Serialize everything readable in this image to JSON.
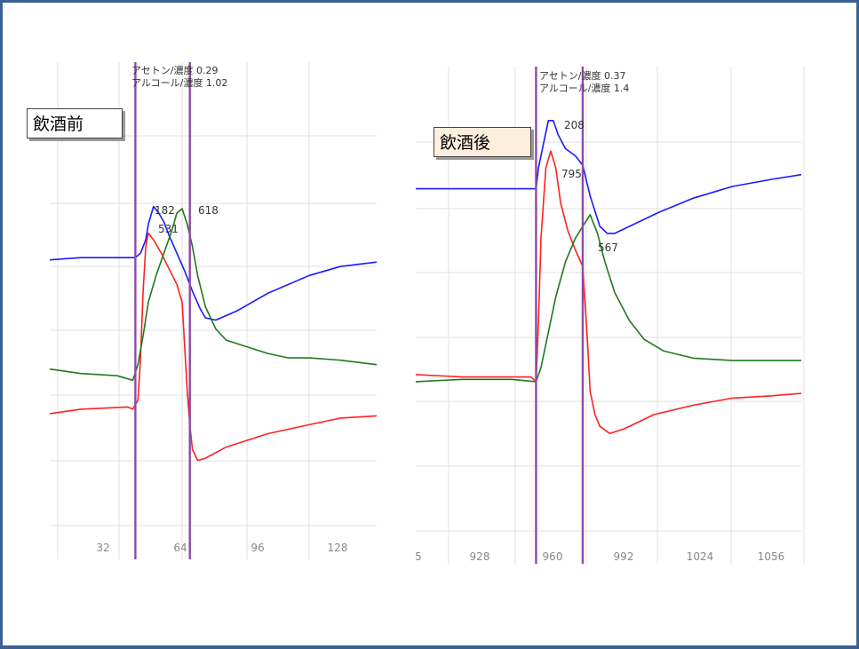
{
  "chart_data": [
    {
      "type": "line",
      "label": "飲酒前",
      "x_ticks": [
        "32",
        "64",
        "96",
        "128"
      ],
      "cursor_text": [
        "アセトン/濃度 0.29",
        "アルコール/濃度 1.02"
      ],
      "peaks": [
        "182",
        "531",
        "618"
      ],
      "series_colors": {
        "blue": "#1a1aff",
        "red": "#ff2020",
        "green": "#1e7a1e"
      },
      "x_range": [
        12,
        138
      ],
      "cursor_x": [
        45,
        66
      ],
      "series": [
        {
          "color": "blue",
          "points": [
            [
              12,
              0.79
            ],
            [
              24,
              0.8
            ],
            [
              45,
              0.8
            ],
            [
              47,
              0.82
            ],
            [
              49,
              0.88
            ],
            [
              50,
              0.95
            ],
            [
              52,
              1.03
            ],
            [
              54,
              1.0
            ],
            [
              56,
              0.96
            ],
            [
              58,
              0.9
            ],
            [
              61,
              0.82
            ],
            [
              64,
              0.74
            ],
            [
              67,
              0.65
            ],
            [
              70,
              0.57
            ],
            [
              72,
              0.53
            ],
            [
              76,
              0.52
            ],
            [
              84,
              0.56
            ],
            [
              96,
              0.64
            ],
            [
              112,
              0.72
            ],
            [
              124,
              0.76
            ],
            [
              138,
              0.78
            ]
          ]
        },
        {
          "color": "red",
          "points": [
            [
              12,
              0.1
            ],
            [
              24,
              0.12
            ],
            [
              42,
              0.13
            ],
            [
              44,
              0.12
            ],
            [
              46,
              0.16
            ],
            [
              47,
              0.35
            ],
            [
              48,
              0.65
            ],
            [
              49,
              0.85
            ],
            [
              50,
              0.91
            ],
            [
              52,
              0.88
            ],
            [
              55,
              0.82
            ],
            [
              58,
              0.75
            ],
            [
              61,
              0.68
            ],
            [
              63,
              0.6
            ],
            [
              64,
              0.4
            ],
            [
              65,
              0.2
            ],
            [
              66,
              0.05
            ],
            [
              67,
              -0.06
            ],
            [
              69,
              -0.11
            ],
            [
              72,
              -0.1
            ],
            [
              80,
              -0.05
            ],
            [
              96,
              0.01
            ],
            [
              112,
              0.05
            ],
            [
              124,
              0.08
            ],
            [
              138,
              0.09
            ]
          ]
        },
        {
          "color": "green",
          "points": [
            [
              12,
              0.3
            ],
            [
              24,
              0.28
            ],
            [
              38,
              0.27
            ],
            [
              44,
              0.25
            ],
            [
              46,
              0.32
            ],
            [
              48,
              0.45
            ],
            [
              50,
              0.6
            ],
            [
              53,
              0.72
            ],
            [
              56,
              0.82
            ],
            [
              59,
              0.92
            ],
            [
              61,
              1.0
            ],
            [
              63,
              1.02
            ],
            [
              65,
              0.95
            ],
            [
              67,
              0.85
            ],
            [
              69,
              0.72
            ],
            [
              72,
              0.58
            ],
            [
              76,
              0.48
            ],
            [
              80,
              0.43
            ],
            [
              88,
              0.4
            ],
            [
              96,
              0.37
            ],
            [
              104,
              0.35
            ],
            [
              112,
              0.35
            ],
            [
              124,
              0.34
            ],
            [
              138,
              0.32
            ]
          ]
        }
      ]
    },
    {
      "type": "line",
      "label": "飲酒後",
      "x_ticks": [
        "5",
        "928",
        "960",
        "992",
        "1024",
        "1056"
      ],
      "cursor_text": [
        "アセトン/濃度 0.37",
        "アルコール/濃度 1.4"
      ],
      "peaks": [
        "208",
        "795",
        "567"
      ],
      "series_colors": {
        "blue": "#1a1aff",
        "red": "#ff2020",
        "green": "#1e7a1e"
      },
      "x_range": [
        911,
        1068
      ],
      "cursor_x": [
        960,
        979
      ],
      "series": [
        {
          "color": "blue",
          "points": [
            [
              911,
              1.16
            ],
            [
              930,
              1.16
            ],
            [
              958,
              1.16
            ],
            [
              960,
              1.16
            ],
            [
              961,
              1.25
            ],
            [
              963,
              1.35
            ],
            [
              965,
              1.45
            ],
            [
              967,
              1.45
            ],
            [
              969,
              1.39
            ],
            [
              972,
              1.33
            ],
            [
              976,
              1.3
            ],
            [
              979,
              1.26
            ],
            [
              982,
              1.13
            ],
            [
              986,
              1.0
            ],
            [
              989,
              0.97
            ],
            [
              992,
              0.97
            ],
            [
              1000,
              1.01
            ],
            [
              1010,
              1.06
            ],
            [
              1024,
              1.12
            ],
            [
              1040,
              1.17
            ],
            [
              1056,
              1.2
            ],
            [
              1068,
              1.22
            ]
          ]
        },
        {
          "color": "red",
          "points": [
            [
              911,
              0.37
            ],
            [
              930,
              0.36
            ],
            [
              958,
              0.36
            ],
            [
              960,
              0.34
            ],
            [
              961,
              0.6
            ],
            [
              962,
              0.95
            ],
            [
              964,
              1.25
            ],
            [
              966,
              1.32
            ],
            [
              968,
              1.25
            ],
            [
              970,
              1.1
            ],
            [
              973,
              0.98
            ],
            [
              976,
              0.9
            ],
            [
              979,
              0.83
            ],
            [
              981,
              0.5
            ],
            [
              982,
              0.3
            ],
            [
              984,
              0.2
            ],
            [
              986,
              0.15
            ],
            [
              990,
              0.12
            ],
            [
              996,
              0.14
            ],
            [
              1008,
              0.2
            ],
            [
              1024,
              0.24
            ],
            [
              1040,
              0.27
            ],
            [
              1056,
              0.28
            ],
            [
              1068,
              0.29
            ]
          ]
        },
        {
          "color": "green",
          "points": [
            [
              911,
              0.34
            ],
            [
              930,
              0.35
            ],
            [
              950,
              0.35
            ],
            [
              960,
              0.34
            ],
            [
              962,
              0.4
            ],
            [
              965,
              0.55
            ],
            [
              968,
              0.7
            ],
            [
              972,
              0.85
            ],
            [
              976,
              0.95
            ],
            [
              979,
              1.0
            ],
            [
              982,
              1.05
            ],
            [
              985,
              0.97
            ],
            [
              988,
              0.85
            ],
            [
              992,
              0.72
            ],
            [
              998,
              0.6
            ],
            [
              1004,
              0.52
            ],
            [
              1012,
              0.47
            ],
            [
              1024,
              0.44
            ],
            [
              1040,
              0.43
            ],
            [
              1056,
              0.43
            ],
            [
              1068,
              0.43
            ]
          ]
        }
      ]
    }
  ]
}
